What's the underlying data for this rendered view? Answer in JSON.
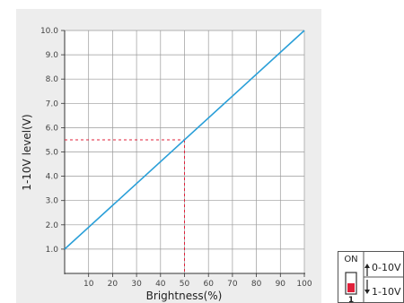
{
  "chart_data": {
    "type": "line",
    "title": "",
    "xlabel": "Brightness(%)",
    "ylabel": "1-10V level(V)",
    "xlim": [
      0,
      100
    ],
    "ylim": [
      0,
      10
    ],
    "x_ticks": [
      10,
      20,
      30,
      40,
      50,
      60,
      70,
      80,
      90,
      100
    ],
    "x_tick_labels": [
      "10",
      "20",
      "30",
      "40",
      "50",
      "60",
      "70",
      "80",
      "90",
      "100"
    ],
    "y_ticks": [
      1,
      2,
      3,
      4,
      5,
      6,
      7,
      8,
      9,
      10
    ],
    "y_tick_labels": [
      "1.0",
      "2.0",
      "3.0",
      "4.0",
      "5.0",
      "6.0",
      "7.0",
      "8.0",
      "9.0",
      "10.0"
    ],
    "grid": true,
    "series": [
      {
        "x": [
          0,
          100
        ],
        "y": [
          1,
          10
        ],
        "color": "#2a9fd8"
      }
    ],
    "reference_point": {
      "x": 50,
      "y": 5.5,
      "color": "#e0203a"
    }
  },
  "switch_panel": {
    "on_label": "ON",
    "top_label": "0-10V",
    "bottom_label": "1-10V",
    "position_label": "1",
    "accent": "#e0203a"
  }
}
